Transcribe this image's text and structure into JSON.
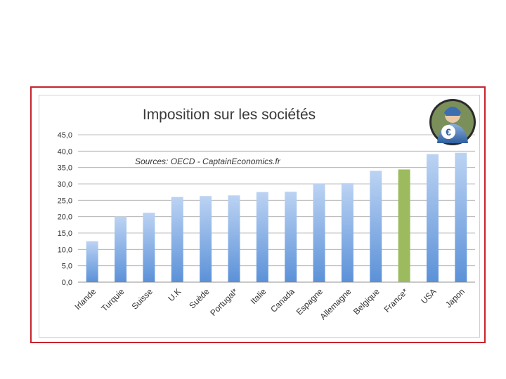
{
  "chart_data": {
    "type": "bar",
    "title": "Imposition sur les sociétés",
    "source_note": "Sources: OECD - CaptainEconomics.fr",
    "categories": [
      "Irlande",
      "Turquie",
      "Suisse",
      "U.K",
      "Suède",
      "Portugal*",
      "Italie",
      "Canada",
      "Espagne",
      "Allemagne",
      "Belgique",
      "France*",
      "USA",
      "Japon"
    ],
    "values": [
      12.5,
      20.0,
      21.2,
      26.0,
      26.3,
      26.5,
      27.5,
      27.6,
      30.0,
      30.2,
      34.0,
      34.4,
      39.1,
      39.5
    ],
    "highlight_category": "France*",
    "ylim": [
      0,
      45
    ],
    "yticks": [
      "0,0",
      "5,0",
      "10,0",
      "15,0",
      "20,0",
      "25,0",
      "30,0",
      "35,0",
      "40,0",
      "45,0"
    ],
    "xlabel": "",
    "ylabel": "",
    "grid": true,
    "colors": {
      "bar_top": "#bcd3f3",
      "bar_bottom": "#5b91d8",
      "highlight": "#9cbb5e",
      "grid": "#a8a8a8",
      "frame": "#c8232c"
    }
  },
  "logo": {
    "icon": "captain-economics-logo",
    "glyph": "€"
  }
}
